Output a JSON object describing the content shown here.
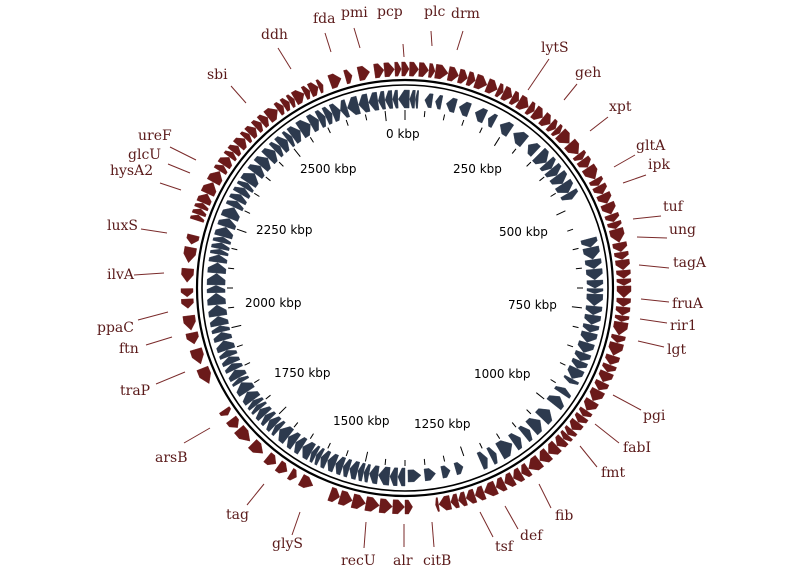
{
  "genome": {
    "total_kbp": 2820,
    "colors": {
      "forward_strand": "#6b1a1a",
      "reverse_strand": "#2d3a4e",
      "backbone": "#000000",
      "label": "#5a1a1a",
      "leader": "#7a2a2a"
    }
  },
  "kbp_ticks": [
    "0 kbp",
    "250 kbp",
    "500 kbp",
    "750 kbp",
    "1000 kbp",
    "1250 kbp",
    "1500 kbp",
    "1750 kbp",
    "2000 kbp",
    "2250 kbp",
    "2500 kbp"
  ],
  "gene_labels": [
    "pcp",
    "plc",
    "drm",
    "lytS",
    "geh",
    "xpt",
    "gltA",
    "ipk",
    "tuf",
    "ung",
    "tagA",
    "fruA",
    "rir1",
    "lgt",
    "pgi",
    "fabI",
    "fmt",
    "fib",
    "def",
    "tsf",
    "citB",
    "alr",
    "recU",
    "glyS",
    "tag",
    "arsB",
    "traP",
    "ftn",
    "ppaC",
    "ilvA",
    "luxS",
    "hysA2",
    "glcU",
    "ureF",
    "sbi",
    "ddh",
    "fda",
    "pmi"
  ]
}
